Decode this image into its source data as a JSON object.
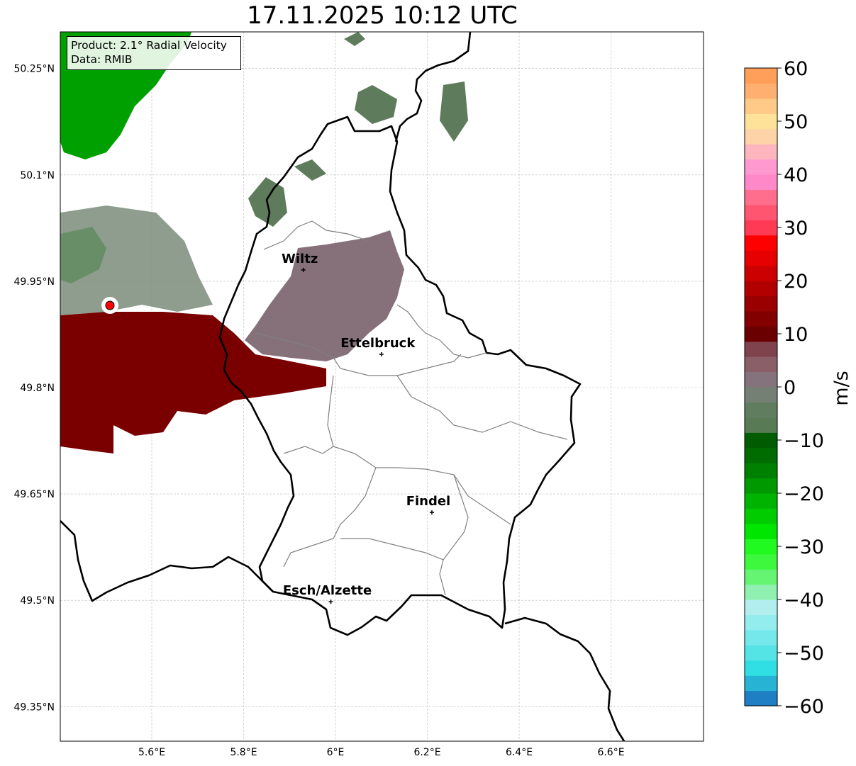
{
  "title": "17.11.2025 10:12 UTC",
  "info": {
    "product": "Product: 2.1° Radial Velocity",
    "data": "Data: RMIB"
  },
  "map": {
    "lon_ticks": [
      "5.6°E",
      "5.8°E",
      "6°E",
      "6.2°E",
      "6.4°E",
      "6.6°E"
    ],
    "lat_ticks": [
      "50.25°N",
      "50.1°N",
      "49.95°N",
      "49.8°N",
      "49.65°N",
      "49.5°N",
      "49.35°N"
    ],
    "cities": [
      {
        "name": "Wiltz",
        "lon": 5.93,
        "lat": 49.966
      },
      {
        "name": "Ettelbruck",
        "lon": 6.1,
        "lat": 49.847
      },
      {
        "name": "Findel",
        "lon": 6.21,
        "lat": 49.624
      },
      {
        "name": "Esch/Alzette",
        "lon": 5.99,
        "lat": 49.498
      }
    ],
    "radar_marker_color": "#ff0000"
  },
  "colorbar": {
    "label": "m/s",
    "ticks": [
      "60",
      "50",
      "40",
      "30",
      "20",
      "10",
      "0",
      "−10",
      "−20",
      "−30",
      "−40",
      "−50",
      "−60"
    ],
    "min": -60,
    "max": 60,
    "colors": [
      "#1f7fc4",
      "#26b3d4",
      "#2fdfe3",
      "#55e4e6",
      "#74e8ea",
      "#93eced",
      "#b3eeee",
      "#90f0b0",
      "#66f572",
      "#3df83d",
      "#20fa20",
      "#00e600",
      "#00cc00",
      "#00b300",
      "#009900",
      "#008000",
      "#006c00",
      "#005c00",
      "#587b56",
      "#607d60",
      "#748074",
      "#84737c",
      "#8a5f68",
      "#7e434c",
      "#6b0000",
      "#820000",
      "#990000",
      "#b20000",
      "#cc0000",
      "#e60000",
      "#ff0000",
      "#ff3a55",
      "#ff5570",
      "#ff6e8c",
      "#ff88c8",
      "#ff99d0",
      "#ffb5bd",
      "#ffd3a8",
      "#ffe29a",
      "#ffc987",
      "#ffb070",
      "#ff9f5a"
    ]
  }
}
